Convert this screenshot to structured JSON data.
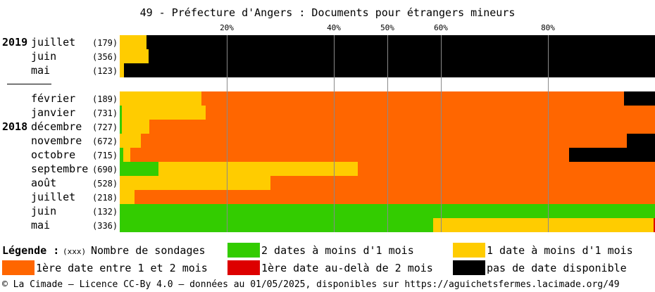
{
  "title": "49 - Préfecture d'Angers : Documents pour étrangers mineurs",
  "colors": {
    "green": "#33cc00",
    "yellow": "#ffcc00",
    "orange": "#ff6600",
    "red": "#dd0000",
    "black": "#000000"
  },
  "chart_data": {
    "type": "bar",
    "stacked": true,
    "orientation": "horizontal",
    "title": "49 - Préfecture d'Angers : Documents pour étrangers mineurs",
    "xlim": [
      0,
      100
    ],
    "xticks": [
      {
        "value": 20,
        "label": "20%"
      },
      {
        "value": 40,
        "label": "40%"
      },
      {
        "value": 50,
        "label": "50%"
      },
      {
        "value": 60,
        "label": "60%"
      },
      {
        "value": 80,
        "label": "80%"
      }
    ],
    "grid": true,
    "series_order": [
      "green",
      "yellow",
      "orange",
      "red",
      "black"
    ],
    "rows": [
      {
        "year": "2019",
        "month": "juillet",
        "count": "(179)",
        "values": {
          "green": 0,
          "yellow": 5,
          "orange": 0,
          "red": 0,
          "black": 95
        }
      },
      {
        "year": "",
        "month": "juin",
        "count": "(356)",
        "values": {
          "green": 0,
          "yellow": 5.4,
          "orange": 0,
          "red": 0,
          "black": 94.6
        }
      },
      {
        "year": "",
        "month": "mai",
        "count": "(123)",
        "values": {
          "green": 0,
          "yellow": 0.8,
          "orange": 0,
          "red": 0,
          "black": 99.2
        }
      },
      {
        "year": "",
        "month": "février",
        "count": "(189)",
        "values": {
          "green": 0,
          "yellow": 15.3,
          "orange": 78.9,
          "red": 0,
          "black": 5.8
        }
      },
      {
        "year": "",
        "month": "janvier",
        "count": "(731)",
        "values": {
          "green": 0.4,
          "yellow": 15.7,
          "orange": 83.9,
          "red": 0,
          "black": 0
        }
      },
      {
        "year": "2018",
        "month": "décembre",
        "count": "(727)",
        "values": {
          "green": 0.4,
          "yellow": 5.1,
          "orange": 94.5,
          "red": 0,
          "black": 0
        }
      },
      {
        "year": "",
        "month": "novembre",
        "count": "(672)",
        "values": {
          "green": 0,
          "yellow": 3.9,
          "orange": 90.8,
          "red": 0,
          "black": 5.3
        }
      },
      {
        "year": "",
        "month": "octobre",
        "count": "(715)",
        "values": {
          "green": 0.6,
          "yellow": 1.4,
          "orange": 81.9,
          "red": 0,
          "black": 16.1
        }
      },
      {
        "year": "",
        "month": "septembre",
        "count": "(690)",
        "values": {
          "green": 7.2,
          "yellow": 37.3,
          "orange": 55.5,
          "red": 0,
          "black": 0
        }
      },
      {
        "year": "",
        "month": "août",
        "count": "(528)",
        "values": {
          "green": 0,
          "yellow": 28.2,
          "orange": 71.8,
          "red": 0,
          "black": 0
        }
      },
      {
        "year": "",
        "month": "juillet",
        "count": "(218)",
        "values": {
          "green": 0,
          "yellow": 2.8,
          "orange": 97.2,
          "red": 0,
          "black": 0
        }
      },
      {
        "year": "",
        "month": "juin",
        "count": "(132)",
        "values": {
          "green": 100,
          "yellow": 0,
          "orange": 0,
          "red": 0,
          "black": 0
        }
      },
      {
        "year": "",
        "month": "mai",
        "count": "(336)",
        "values": {
          "green": 58.6,
          "yellow": 41.1,
          "orange": 0,
          "red": 0.3,
          "black": 0
        }
      }
    ]
  },
  "legend": {
    "heading": "Légende :",
    "count_hint": "(xxx)",
    "count_label": "Nombre de sondages",
    "items": [
      {
        "key": "green",
        "label": "2 dates à moins d'1 mois"
      },
      {
        "key": "yellow",
        "label": "1 date à moins d'1 mois"
      },
      {
        "key": "orange",
        "label": "1ère date entre 1 et 2 mois"
      },
      {
        "key": "red",
        "label": "1ère date au-delà de 2 mois"
      },
      {
        "key": "black",
        "label": "pas de date disponible"
      }
    ]
  },
  "footer": "© La Cimade — Licence CC-By 4.0 — données au 01/05/2025, disponibles sur https://aguichetsfermes.lacimade.org/49"
}
